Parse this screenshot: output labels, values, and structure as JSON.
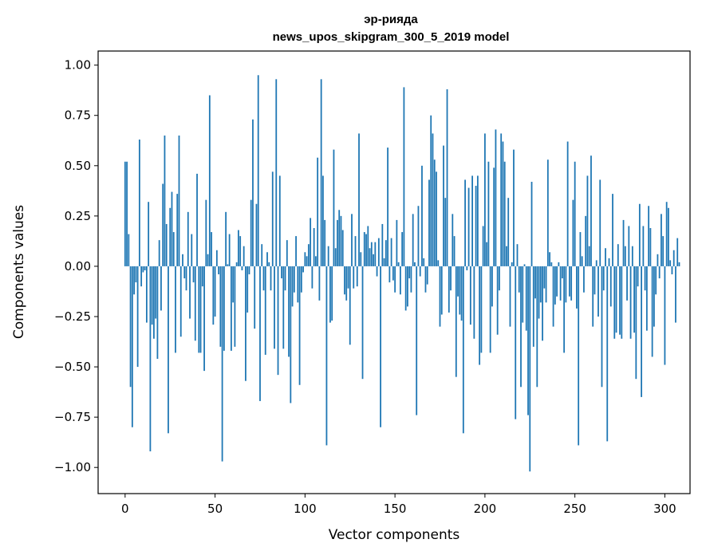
{
  "chart_data": {
    "type": "bar",
    "title": "эр-рияда",
    "subtitle": "news_upos_skipgram_300_5_2019 model",
    "xlabel": "Vector components",
    "ylabel": "Components values",
    "xlim": [
      -15,
      314
    ],
    "ylim": [
      -1.13,
      1.07
    ],
    "xticks": [
      0,
      50,
      100,
      150,
      200,
      250,
      300
    ],
    "yticks": [
      -1.0,
      -0.75,
      -0.5,
      -0.25,
      0.0,
      0.25,
      0.5,
      0.75,
      1.0
    ],
    "ytick_labels": [
      "−1.00",
      "−0.75",
      "−0.50",
      "−0.25",
      "0.00",
      "0.25",
      "0.50",
      "0.75",
      "1.00"
    ],
    "bar_color": "#1f77b4",
    "grid": false,
    "values": [
      0.52,
      0.52,
      0.16,
      -0.6,
      -0.8,
      -0.14,
      -0.08,
      -0.5,
      0.63,
      -0.1,
      -0.03,
      -0.02,
      -0.28,
      0.32,
      -0.92,
      -0.29,
      -0.36,
      -0.26,
      -0.46,
      0.13,
      -0.22,
      0.41,
      0.65,
      0.21,
      -0.83,
      0.29,
      0.37,
      0.17,
      -0.43,
      0.36,
      0.65,
      -0.35,
      0.06,
      -0.06,
      -0.12,
      0.27,
      -0.26,
      0.16,
      -0.08,
      -0.37,
      0.46,
      -0.43,
      -0.43,
      -0.1,
      -0.52,
      0.33,
      0.06,
      0.85,
      0.17,
      -0.29,
      -0.25,
      0.08,
      -0.04,
      -0.4,
      -0.97,
      -0.42,
      0.27,
      0.01,
      0.16,
      -0.42,
      -0.18,
      -0.4,
      0.02,
      0.18,
      0.15,
      -0.02,
      0.1,
      -0.57,
      -0.23,
      -0.04,
      0.33,
      0.73,
      -0.31,
      0.31,
      0.95,
      -0.67,
      0.11,
      -0.12,
      -0.44,
      0.07,
      0.02,
      -0.12,
      0.47,
      -0.41,
      0.93,
      -0.54,
      0.45,
      -0.06,
      -0.41,
      -0.12,
      0.13,
      -0.45,
      -0.68,
      -0.2,
      -0.13,
      0.15,
      -0.18,
      -0.59,
      -0.13,
      -0.03,
      0.07,
      0.05,
      0.11,
      0.24,
      -0.11,
      0.19,
      0.05,
      0.54,
      -0.17,
      0.93,
      0.45,
      0.23,
      -0.89,
      0.1,
      -0.28,
      -0.27,
      0.58,
      0.09,
      0.23,
      0.28,
      0.25,
      0.18,
      -0.14,
      -0.17,
      -0.11,
      -0.39,
      0.26,
      -0.11,
      0.15,
      -0.1,
      0.66,
      0.07,
      -0.56,
      0.17,
      0.16,
      0.2,
      0.09,
      0.12,
      0.06,
      0.12,
      -0.05,
      0.14,
      -0.8,
      0.21,
      0.04,
      0.13,
      0.59,
      -0.08,
      0.14,
      -0.07,
      -0.13,
      0.23,
      0.02,
      -0.14,
      0.17,
      0.89,
      -0.22,
      -0.2,
      -0.06,
      -0.13,
      0.26,
      0.02,
      -0.74,
      0.3,
      -0.05,
      0.5,
      0.04,
      -0.13,
      -0.09,
      0.43,
      0.75,
      0.66,
      0.53,
      0.47,
      0.03,
      -0.3,
      -0.24,
      0.6,
      0.34,
      0.88,
      -0.23,
      -0.12,
      0.26,
      0.15,
      -0.55,
      -0.15,
      -0.24,
      -0.27,
      -0.83,
      0.43,
      -0.02,
      0.39,
      -0.29,
      0.45,
      -0.36,
      0.4,
      0.45,
      -0.49,
      -0.43,
      0.2,
      0.66,
      0.12,
      0.52,
      -0.43,
      -0.2,
      0.49,
      0.68,
      -0.34,
      -0.12,
      0.66,
      0.62,
      0.52,
      0.1,
      0.34,
      -0.3,
      0.02,
      0.58,
      -0.76,
      0.11,
      -0.13,
      -0.6,
      -0.28,
      0.01,
      -0.32,
      -0.74,
      -1.02,
      0.42,
      -0.4,
      -0.16,
      -0.6,
      -0.26,
      -0.18,
      -0.37,
      -0.11,
      -0.18,
      0.53,
      0.07,
      0.02,
      -0.3,
      -0.19,
      -0.15,
      0.02,
      -0.17,
      -0.06,
      -0.43,
      -0.18,
      0.62,
      -0.15,
      -0.17,
      0.33,
      0.52,
      -0.21,
      -0.89,
      0.17,
      0.05,
      -0.13,
      0.25,
      0.45,
      0.1,
      0.55,
      -0.3,
      -0.14,
      0.03,
      -0.25,
      0.43,
      -0.6,
      -0.12,
      0.09,
      -0.87,
      0.04,
      -0.2,
      0.36,
      -0.36,
      -0.33,
      0.11,
      -0.34,
      -0.36,
      0.23,
      0.1,
      -0.17,
      0.2,
      -0.36,
      0.1,
      -0.33,
      -0.56,
      -0.1,
      0.31,
      -0.65,
      0.2,
      -0.12,
      -0.32,
      0.3,
      0.19,
      -0.45,
      -0.3,
      -0.14,
      0.06,
      -0.06,
      0.26,
      0.15,
      -0.49,
      0.32,
      0.29,
      0.03,
      -0.04,
      0.08,
      -0.28,
      0.14,
      0.02
    ]
  }
}
